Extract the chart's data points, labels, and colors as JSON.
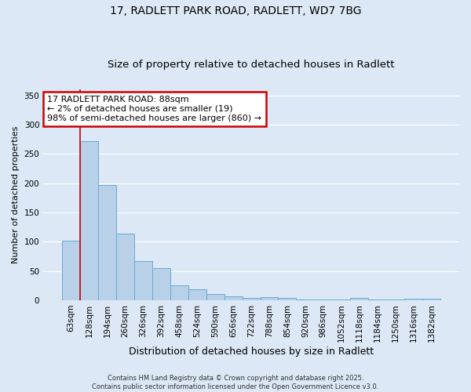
{
  "title": "17, RADLETT PARK ROAD, RADLETT, WD7 7BG",
  "subtitle": "Size of property relative to detached houses in Radlett",
  "xlabel": "Distribution of detached houses by size in Radlett",
  "ylabel": "Number of detached properties",
  "bin_labels": [
    "63sqm",
    "128sqm",
    "194sqm",
    "260sqm",
    "326sqm",
    "392sqm",
    "458sqm",
    "524sqm",
    "590sqm",
    "656sqm",
    "722sqm",
    "788sqm",
    "854sqm",
    "920sqm",
    "986sqm",
    "1052sqm",
    "1118sqm",
    "1184sqm",
    "1250sqm",
    "1316sqm",
    "1382sqm"
  ],
  "bar_heights": [
    102,
    272,
    197,
    114,
    67,
    55,
    25,
    18,
    10,
    7,
    4,
    5,
    4,
    1,
    1,
    1,
    4,
    1,
    1,
    3,
    3
  ],
  "bar_color": "#b8d0e8",
  "bar_edge_color": "#6aaad4",
  "background_color": "#dce8f5",
  "grid_color": "#ffffff",
  "annotation_text": "17 RADLETT PARK ROAD: 88sqm\n← 2% of detached houses are smaller (19)\n98% of semi-detached houses are larger (860) →",
  "annotation_box_color": "#ffffff",
  "annotation_box_edge": "#cc0000",
  "ylim": [
    0,
    360
  ],
  "yticks": [
    0,
    50,
    100,
    150,
    200,
    250,
    300,
    350
  ],
  "footer_text": "Contains HM Land Registry data © Crown copyright and database right 2025.\nContains public sector information licensed under the Open Government Licence v3.0.",
  "title_fontsize": 10,
  "subtitle_fontsize": 9.5,
  "xlabel_fontsize": 9,
  "ylabel_fontsize": 8,
  "tick_fontsize": 7.5,
  "ann_fontsize": 8
}
